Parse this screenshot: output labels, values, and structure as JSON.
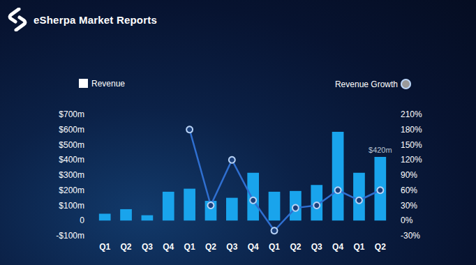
{
  "chart_data": {
    "type": "bar",
    "title": "eSherpa Market Reports",
    "categories": [
      "Q1",
      "Q2",
      "Q3",
      "Q4",
      "Q1",
      "Q2",
      "Q3",
      "Q4",
      "Q1",
      "Q2",
      "Q3",
      "Q4",
      "Q1",
      "Q2"
    ],
    "series": [
      {
        "name": "Revenue",
        "type": "bar",
        "color": "#19a4ec",
        "values": [
          45,
          75,
          35,
          190,
          210,
          130,
          150,
          315,
          190,
          195,
          235,
          585,
          315,
          420
        ],
        "value_labels": [
          null,
          null,
          null,
          null,
          null,
          null,
          null,
          null,
          null,
          null,
          null,
          null,
          null,
          "$420m"
        ]
      },
      {
        "name": "Revenue Growth",
        "type": "line",
        "axis": "y2",
        "color": "#2f6fd0",
        "marker": "circle",
        "values": [
          null,
          null,
          null,
          null,
          180,
          30,
          120,
          40,
          -20,
          25,
          30,
          60,
          40,
          60
        ]
      }
    ],
    "ylim": [
      -100,
      700
    ],
    "yticks": [
      {
        "value": -100,
        "label": "-$100m"
      },
      0,
      {
        "value": 100,
        "label": "$100m"
      },
      {
        "value": 200,
        "label": "$200m"
      },
      {
        "value": 300,
        "label": "$300m"
      },
      {
        "value": 400,
        "label": "$400m"
      },
      {
        "value": 500,
        "label": "$500m"
      },
      {
        "value": 600,
        "label": "$600m"
      },
      {
        "value": 700,
        "label": "$700m"
      }
    ],
    "y2lim": [
      -30,
      210
    ],
    "y2ticks": [
      {
        "value": -30,
        "label": "-30%"
      },
      {
        "value": 0,
        "label": "0%"
      },
      {
        "value": 30,
        "label": "30%"
      },
      {
        "value": 60,
        "label": "60%"
      },
      {
        "value": 90,
        "label": "90%"
      },
      {
        "value": 120,
        "label": "120%"
      },
      {
        "value": 150,
        "label": "150%"
      },
      {
        "value": 180,
        "label": "180%"
      },
      {
        "value": 210,
        "label": "210%"
      }
    ],
    "data_labels": true,
    "legend": "top",
    "grid": false
  }
}
